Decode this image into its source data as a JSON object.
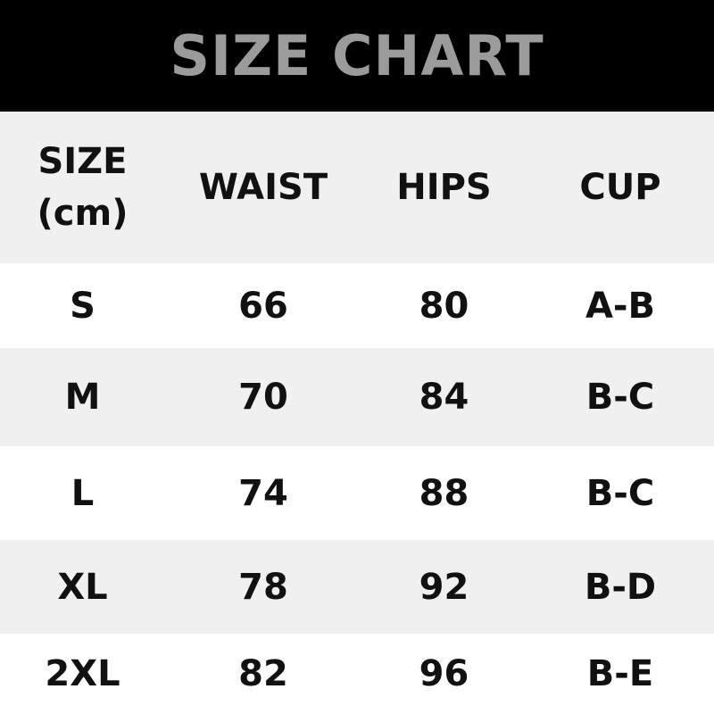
{
  "title": "SIZE CHART",
  "headers": {
    "size_line1": "SIZE",
    "size_line2": "(cm)",
    "waist": "WAIST",
    "hips": "HIPS",
    "cup": "CUP"
  },
  "rows": [
    {
      "size": "S",
      "waist": "66",
      "hips": "80",
      "cup": "A-B"
    },
    {
      "size": "M",
      "waist": "70",
      "hips": "84",
      "cup": "B-C"
    },
    {
      "size": "L",
      "waist": "74",
      "hips": "88",
      "cup": "B-C"
    },
    {
      "size": "XL",
      "waist": "78",
      "hips": "92",
      "cup": "B-D"
    },
    {
      "size": "2XL",
      "waist": "82",
      "hips": "96",
      "cup": "B-E"
    }
  ]
}
